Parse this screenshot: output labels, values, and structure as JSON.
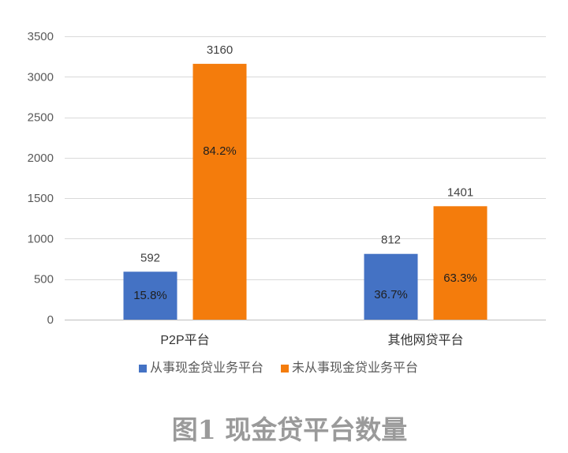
{
  "chart_data": {
    "type": "bar",
    "categories": [
      "P2P平台",
      "其他网贷平台"
    ],
    "series": [
      {
        "name": "从事现金贷业务平台",
        "values": [
          592,
          812
        ],
        "percent_labels": [
          "15.8%",
          "36.7%"
        ],
        "color": "#4472C4"
      },
      {
        "name": "未从事现金贷业务平台",
        "values": [
          3160,
          1401
        ],
        "percent_labels": [
          "84.2%",
          "63.3%"
        ],
        "color": "#F47C0C"
      }
    ],
    "ylim": [
      0,
      3500
    ],
    "yticks": [
      0,
      500,
      1000,
      1500,
      2000,
      2500,
      3000,
      3500
    ],
    "grid": true,
    "legend": "bottom"
  },
  "figure": {
    "caption": "图1 现金贷平台数量"
  }
}
